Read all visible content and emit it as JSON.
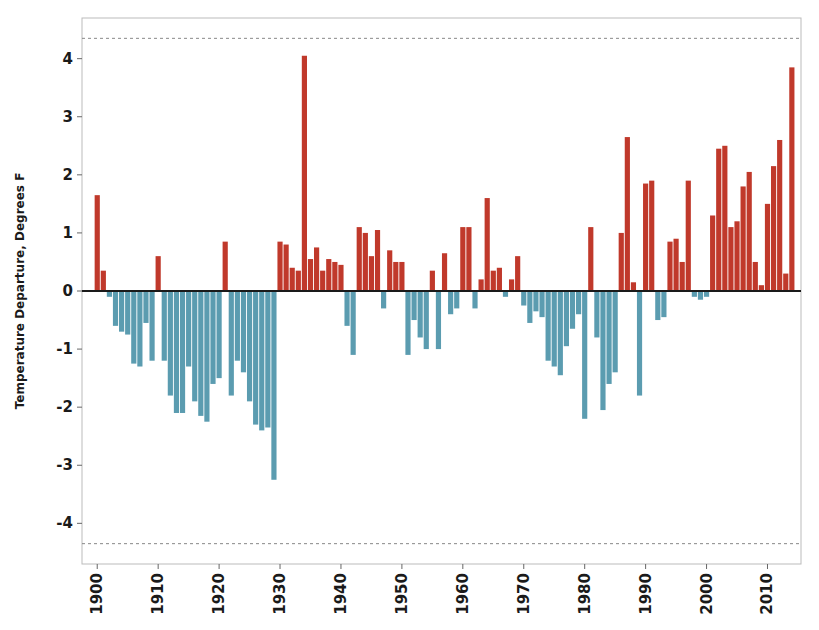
{
  "chart_data": {
    "type": "bar",
    "ylabel": "Temperature Departure, Degrees F",
    "x": [
      1900,
      1901,
      1902,
      1903,
      1904,
      1905,
      1906,
      1907,
      1908,
      1909,
      1910,
      1911,
      1912,
      1913,
      1914,
      1915,
      1916,
      1917,
      1918,
      1919,
      1920,
      1921,
      1922,
      1923,
      1924,
      1925,
      1926,
      1927,
      1928,
      1929,
      1930,
      1931,
      1932,
      1933,
      1934,
      1935,
      1936,
      1937,
      1938,
      1939,
      1940,
      1941,
      1942,
      1943,
      1944,
      1945,
      1946,
      1947,
      1948,
      1949,
      1950,
      1951,
      1952,
      1953,
      1954,
      1955,
      1956,
      1957,
      1958,
      1959,
      1960,
      1961,
      1962,
      1963,
      1964,
      1965,
      1966,
      1967,
      1968,
      1969,
      1970,
      1971,
      1972,
      1973,
      1974,
      1975,
      1976,
      1977,
      1978,
      1979,
      1980,
      1981,
      1982,
      1983,
      1984,
      1985,
      1986,
      1987,
      1988,
      1989,
      1990,
      1991,
      1992,
      1993,
      1994,
      1995,
      1996,
      1997,
      1998,
      1999,
      2000,
      2001,
      2002,
      2003,
      2004,
      2005,
      2006,
      2007,
      2008,
      2009,
      2010,
      2011,
      2012,
      2013,
      2014
    ],
    "values": [
      1.65,
      0.35,
      -0.1,
      -0.6,
      -0.7,
      -0.75,
      -1.25,
      -1.3,
      -0.55,
      -1.2,
      0.6,
      -1.2,
      -1.8,
      -2.1,
      -2.1,
      -1.3,
      -1.9,
      -2.15,
      -2.25,
      -1.6,
      -1.5,
      0.85,
      -1.8,
      -1.2,
      -1.4,
      -1.9,
      -2.3,
      -2.4,
      -2.35,
      -3.25,
      0.85,
      0.8,
      0.4,
      0.35,
      4.05,
      0.55,
      0.75,
      0.35,
      0.55,
      0.5,
      0.45,
      -0.6,
      -1.1,
      1.1,
      1.0,
      0.6,
      1.05,
      -0.3,
      0.7,
      0.5,
      0.5,
      -1.1,
      -0.5,
      -0.8,
      -1.0,
      0.35,
      -1.0,
      0.65,
      -0.4,
      -0.3,
      1.1,
      1.1,
      -0.3,
      0.2,
      1.6,
      0.35,
      0.4,
      -0.1,
      0.2,
      0.6,
      -0.25,
      -0.55,
      -0.35,
      -0.45,
      -1.2,
      -1.3,
      -1.45,
      -0.95,
      -0.65,
      -0.4,
      -2.2,
      1.1,
      -0.8,
      -2.05,
      -1.6,
      -1.4,
      1.0,
      2.65,
      0.15,
      -1.8,
      1.85,
      1.9,
      -0.5,
      -0.45,
      0.85,
      0.9,
      0.5,
      1.9,
      -0.1,
      -0.15,
      -0.1,
      1.3,
      2.45,
      2.5,
      1.1,
      1.2,
      1.8,
      2.05,
      0.5,
      0.1,
      1.5,
      2.15,
      2.6,
      0.3,
      3.85
    ],
    "colors": [
      "#C0392B",
      "#C0392B",
      "#5B9CB0",
      "#5B9CB0",
      "#5B9CB0",
      "#5B9CB0",
      "#5B9CB0",
      "#5B9CB0",
      "#5B9CB0",
      "#5B9CB0",
      "#C0392B",
      "#5B9CB0",
      "#5B9CB0",
      "#5B9CB0",
      "#5B9CB0",
      "#5B9CB0",
      "#5B9CB0",
      "#5B9CB0",
      "#5B9CB0",
      "#5B9CB0",
      "#5B9CB0",
      "#C0392B",
      "#5B9CB0",
      "#5B9CB0",
      "#5B9CB0",
      "#5B9CB0",
      "#5B9CB0",
      "#5B9CB0",
      "#5B9CB0",
      "#5B9CB0",
      "#C0392B",
      "#C0392B",
      "#C0392B",
      "#C0392B",
      "#C0392B",
      "#C0392B",
      "#C0392B",
      "#C0392B",
      "#C0392B",
      "#C0392B",
      "#C0392B",
      "#5B9CB0",
      "#5B9CB0",
      "#C0392B",
      "#C0392B",
      "#C0392B",
      "#C0392B",
      "#5B9CB0",
      "#C0392B",
      "#C0392B",
      "#C0392B",
      "#5B9CB0",
      "#5B9CB0",
      "#5B9CB0",
      "#5B9CB0",
      "#C0392B",
      "#5B9CB0",
      "#C0392B",
      "#5B9CB0",
      "#5B9CB0",
      "#C0392B",
      "#C0392B",
      "#5B9CB0",
      "#C0392B",
      "#C0392B",
      "#C0392B",
      "#C0392B",
      "#5B9CB0",
      "#C0392B",
      "#C0392B",
      "#5B9CB0",
      "#5B9CB0",
      "#5B9CB0",
      "#5B9CB0",
      "#5B9CB0",
      "#5B9CB0",
      "#5B9CB0",
      "#5B9CB0",
      "#5B9CB0",
      "#5B9CB0",
      "#5B9CB0",
      "#C0392B",
      "#5B9CB0",
      "#5B9CB0",
      "#5B9CB0",
      "#5B9CB0",
      "#C0392B",
      "#C0392B",
      "#C0392B",
      "#5B9CB0",
      "#C0392B",
      "#C0392B",
      "#5B9CB0",
      "#5B9CB0",
      "#C0392B",
      "#C0392B",
      "#C0392B",
      "#C0392B",
      "#5B9CB0",
      "#5B9CB0",
      "#5B9CB0",
      "#C0392B",
      "#C0392B",
      "#C0392B",
      "#C0392B",
      "#C0392B",
      "#C0392B",
      "#C0392B",
      "#C0392B",
      "#C0392B",
      "#C0392B",
      "#C0392B",
      "#C0392B",
      "#C0392B",
      "#C0392B"
    ],
    "hlines": [
      4.35,
      -4.35
    ],
    "xlim": [
      1897.5,
      2015.5
    ],
    "xticks": [
      1900,
      1910,
      1920,
      1930,
      1940,
      1950,
      1960,
      1970,
      1980,
      1990,
      2000,
      2010
    ],
    "ylim": [
      -4.7,
      4.7
    ],
    "yticks": [
      -4,
      -3,
      -2,
      -1,
      0,
      1,
      2,
      3,
      4
    ],
    "grid": false
  }
}
